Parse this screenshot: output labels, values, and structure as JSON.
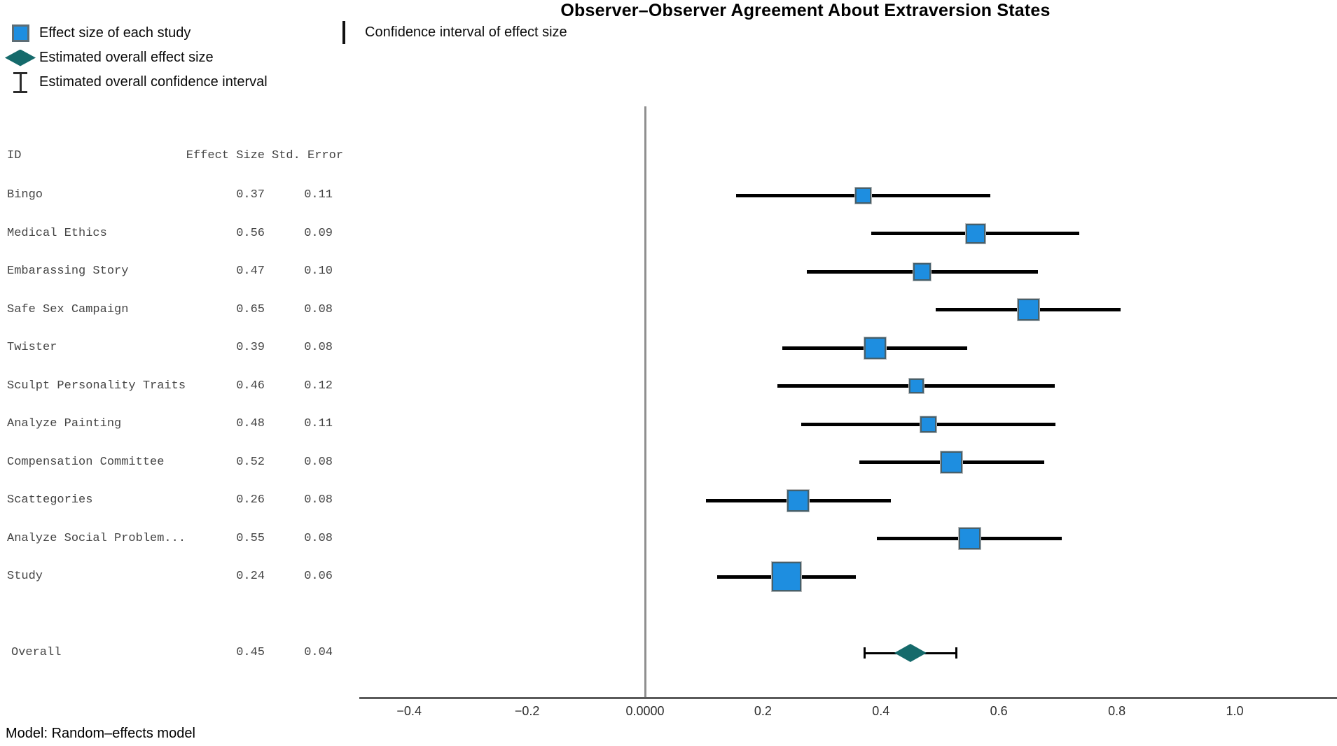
{
  "title": "Observer–Observer Agreement About Extraversion States",
  "legend": {
    "items": [
      {
        "icon": "effect-square-icon",
        "label": "Effect size of each study"
      },
      {
        "icon": "overall-diamond-icon",
        "label": "Estimated overall effect size"
      },
      {
        "icon": "overall-ci-ibeam-icon",
        "label": "Estimated overall confidence interval"
      },
      {
        "icon": "ci-bar-icon",
        "label": "Confidence interval of effect size"
      }
    ]
  },
  "table": {
    "headers": {
      "id": "ID",
      "effect_size": "Effect Size",
      "std_error": "Std. Error"
    }
  },
  "footer": {
    "model_label": "Model: Random–effects model"
  },
  "chart_data": {
    "type": "forest",
    "title": "Observer–Observer Agreement About Extraversion States",
    "model": "Random-effects model",
    "ci_multiplier": 1.96,
    "studies": [
      {
        "id": "Bingo",
        "effect_size": 0.37,
        "std_error": 0.11
      },
      {
        "id": "Medical Ethics",
        "effect_size": 0.56,
        "std_error": 0.09
      },
      {
        "id": "Embarassing Story",
        "effect_size": 0.47,
        "std_error": 0.1
      },
      {
        "id": "Safe Sex Campaign",
        "effect_size": 0.65,
        "std_error": 0.08
      },
      {
        "id": "Twister",
        "effect_size": 0.39,
        "std_error": 0.08
      },
      {
        "id": "Sculpt Personality Traits",
        "effect_size": 0.46,
        "std_error": 0.12
      },
      {
        "id": "Analyze Painting",
        "effect_size": 0.48,
        "std_error": 0.11
      },
      {
        "id": "Compensation Committee",
        "effect_size": 0.52,
        "std_error": 0.08
      },
      {
        "id": "Scattegories",
        "effect_size": 0.26,
        "std_error": 0.08
      },
      {
        "id": "Analyze Social Problem...",
        "effect_size": 0.55,
        "std_error": 0.08
      },
      {
        "id": "Study",
        "effect_size": 0.24,
        "std_error": 0.06
      }
    ],
    "overall": {
      "id": "Overall",
      "effect_size": 0.45,
      "std_error": 0.04
    },
    "x_ticks": [
      {
        "value": -0.4,
        "label": "−0.4"
      },
      {
        "value": -0.2,
        "label": "−0.2"
      },
      {
        "value": 0.0,
        "label": "0.0000"
      },
      {
        "value": 0.2,
        "label": "0.2"
      },
      {
        "value": 0.4,
        "label": "0.4"
      },
      {
        "value": 0.6,
        "label": "0.6"
      },
      {
        "value": 0.8,
        "label": "0.8"
      },
      {
        "value": 1.0,
        "label": "1.0"
      }
    ],
    "xlim": [
      -0.49,
      1.17
    ],
    "zero_reference_line": 0.0,
    "axis_grid": false,
    "legend_position": "top-left",
    "colors": {
      "square_fill": "#1e8ee0",
      "square_border": "#44606d",
      "diamond_fill": "#156a6b",
      "ci_line": "#000000",
      "axis_line": "#5a5a5a",
      "zero_line": "#8f8f8f"
    }
  }
}
